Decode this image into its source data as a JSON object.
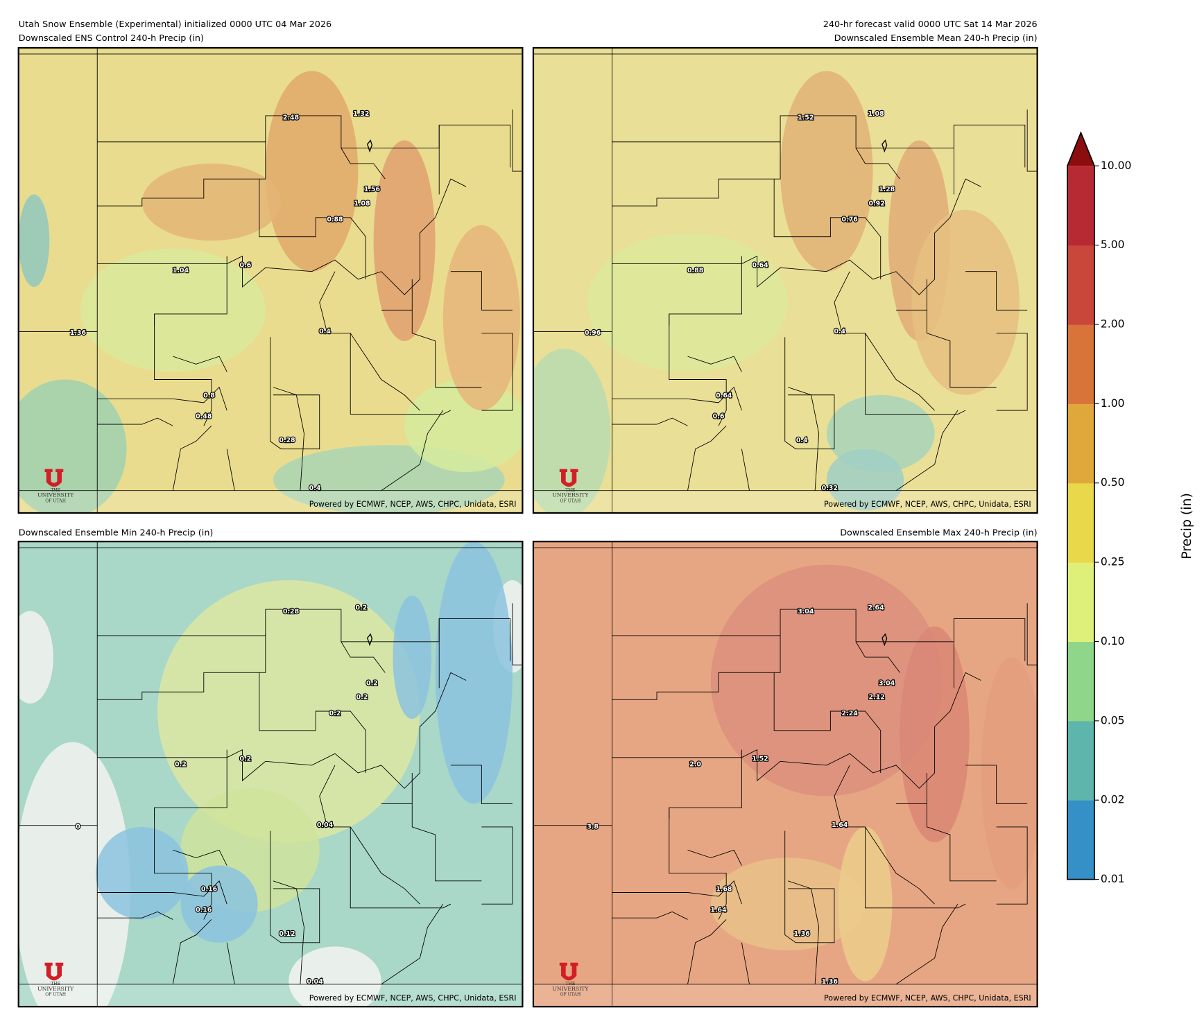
{
  "header": {
    "left": "Utah Snow Ensemble (Experimental) initialized 0000 UTC 04 Mar 2026",
    "right": "240-hr forecast valid 0000 UTC Sat 14 Mar 2026"
  },
  "panels": [
    {
      "title": "Downscaled ENS Control 240-h Precip (in)",
      "labels": [
        "2.48",
        "1.32",
        "1.56",
        "1.08",
        "0.88",
        "1.04",
        "0.6",
        "1.36",
        "0.4",
        "0.8",
        "0.48",
        "0.28",
        "0.4"
      ]
    },
    {
      "title": "Downscaled Ensemble Mean 240-h Precip (in)",
      "labels": [
        "1.52",
        "1.08",
        "1.28",
        "0.92",
        "0.76",
        "0.88",
        "0.64",
        "0.96",
        "0.4",
        "0.64",
        "0.6",
        "0.4",
        "0.32"
      ]
    },
    {
      "title": "Downscaled Ensemble Min 240-h Precip (in)",
      "labels": [
        "0.28",
        "0.2",
        "0.2",
        "0.2",
        "0.2",
        "0.2",
        "0.2",
        "0",
        "0.04",
        "0.16",
        "0.16",
        "0.12",
        "0.04"
      ]
    },
    {
      "title": "Downscaled Ensemble Max 240-h Precip (in)",
      "labels": [
        "3.04",
        "2.64",
        "3.04",
        "2.12",
        "2.24",
        "2.0",
        "1.52",
        "3.8",
        "1.64",
        "1.68",
        "1.64",
        "1.36",
        "1.36"
      ]
    }
  ],
  "credit": "Powered by ECMWF, NCEP, AWS, CHPC, Unidata, ESRI",
  "logo": {
    "line1": "THE",
    "line2": "UNIVERSITY",
    "line3": "OF UTAH"
  },
  "colorbar": {
    "label": "Precip (in)",
    "ticks": [
      {
        "value": 0.01,
        "label": "0.01"
      },
      {
        "value": 0.02,
        "label": "0.02"
      },
      {
        "value": 0.05,
        "label": "0.05"
      },
      {
        "value": 0.1,
        "label": "0.10"
      },
      {
        "value": 0.25,
        "label": "0.25"
      },
      {
        "value": 0.5,
        "label": "0.50"
      },
      {
        "value": 1,
        "label": "1.00"
      },
      {
        "value": 2,
        "label": "2.00"
      },
      {
        "value": 5,
        "label": "5.00"
      },
      {
        "value": 10,
        "label": "10.00"
      }
    ],
    "colors": [
      "#3490c6",
      "#5db5ab",
      "#8fd68a",
      "#dff07a",
      "#e8d84a",
      "#e0a83a",
      "#d8733a",
      "#c9473a",
      "#b82a33"
    ],
    "extend_color": "#8b0d0d"
  }
}
